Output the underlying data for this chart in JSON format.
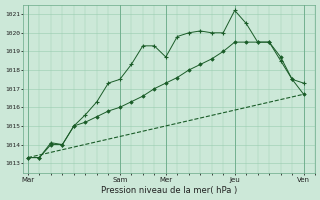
{
  "title": "",
  "xlabel": "Pression niveau de la mer( hPa )",
  "ylabel": "",
  "bg_color": "#cce8d8",
  "grid_color": "#99ccb0",
  "line_color": "#1a5c28",
  "ylim": [
    1012.5,
    1021.5
  ],
  "xtick_labels": [
    "Mar",
    "Sam",
    "Mer",
    "Jeu",
    "Ven"
  ],
  "xtick_positions": [
    0,
    4,
    6,
    9,
    12
  ],
  "ytick_labels": [
    "1013",
    "1014",
    "1015",
    "1016",
    "1017",
    "1018",
    "1019",
    "1020",
    "1021"
  ],
  "ytick_values": [
    1013,
    1014,
    1015,
    1016,
    1017,
    1018,
    1019,
    1020,
    1021
  ],
  "series1_x": [
    0,
    0.5,
    1,
    1.5,
    2,
    2.5,
    3,
    3.5,
    4,
    4.5,
    5,
    5.5,
    6,
    6.5,
    7,
    7.5,
    8,
    8.5,
    9,
    9.5,
    10,
    10.5,
    11,
    11.5,
    12
  ],
  "series1_y": [
    1013.3,
    1013.3,
    1014.1,
    1014.0,
    1015.0,
    1015.6,
    1016.3,
    1017.3,
    1017.5,
    1018.3,
    1019.3,
    1019.3,
    1018.7,
    1019.8,
    1020.0,
    1020.1,
    1020.0,
    1020.0,
    1021.2,
    1020.5,
    1019.5,
    1019.5,
    1018.5,
    1017.5,
    1017.3
  ],
  "series2_x": [
    0,
    0.5,
    1,
    1.5,
    2,
    2.5,
    3,
    3.5,
    4,
    4.5,
    5,
    5.5,
    6,
    6.5,
    7,
    7.5,
    8,
    8.5,
    9,
    9.5,
    10,
    10.5,
    11,
    11.5,
    12
  ],
  "series2_y": [
    1013.3,
    1013.3,
    1014.0,
    1014.0,
    1015.0,
    1015.2,
    1015.5,
    1015.8,
    1016.0,
    1016.3,
    1016.6,
    1017.0,
    1017.3,
    1017.6,
    1018.0,
    1018.3,
    1018.6,
    1019.0,
    1019.5,
    1019.5,
    1019.5,
    1019.5,
    1018.7,
    1017.5,
    1016.7
  ],
  "series3_x": [
    0,
    12
  ],
  "series3_y": [
    1013.3,
    1016.7
  ],
  "xlim": [
    -0.2,
    12.5
  ]
}
